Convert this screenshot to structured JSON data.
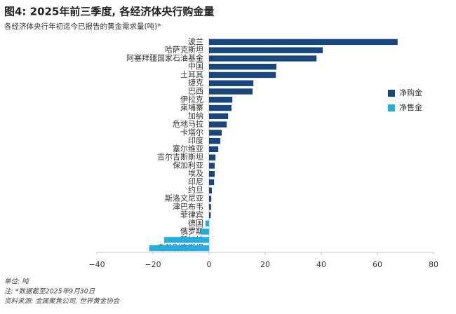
{
  "chart_data": {
    "type": "hbar",
    "title": "图4: 2025年前三季度, 各经济体央行购金量",
    "subtitle": "各经济体央行年初迄今已报告的黄金需求量(吨)*",
    "notes": [
      "单位: 吨",
      "注: *数据截至2025年9月30日",
      "资料来源: 金属聚焦公司, 世界黄金协会"
    ],
    "categories": [
      "波兰",
      "哈萨克斯坦",
      "阿塞拜疆国家石油基金",
      "中国",
      "土耳其",
      "捷克",
      "巴西",
      "伊拉克",
      "柬埔寨",
      "加纳",
      "危地马拉",
      "卡塔尔",
      "印度",
      "塞尔维亚",
      "吉尔吉斯斯坦",
      "保加利亚",
      "埃及",
      "印尼",
      "约旦",
      "斯洛文尼亚",
      "津巴布韦",
      "菲律宾",
      "德国",
      "俄罗斯",
      "新加坡",
      "乌兹别克斯坦"
    ],
    "series": [
      {
        "name": "净购金",
        "color": "#17477e",
        "values": [
          67.2,
          40.5,
          38.3,
          24,
          23.8,
          15.8,
          15.5,
          8.3,
          8,
          6.8,
          6.3,
          4.5,
          4,
          3.3,
          2.3,
          2,
          2,
          1.8,
          1,
          0.8,
          0.7,
          0.6,
          null,
          null,
          null,
          null
        ]
      },
      {
        "name": "净售金",
        "color": "#22aee0",
        "values": [
          null,
          null,
          null,
          null,
          null,
          null,
          null,
          null,
          null,
          null,
          null,
          null,
          null,
          null,
          null,
          null,
          null,
          null,
          null,
          null,
          null,
          null,
          -1.3,
          -3,
          -16,
          -21.3
        ]
      }
    ],
    "xlim": [
      -40,
      80
    ],
    "xticks": [
      {
        "value": -40,
        "label": "−40"
      },
      {
        "value": -20,
        "label": "−20"
      },
      0,
      20,
      40,
      60,
      80
    ],
    "legend": "right"
  }
}
